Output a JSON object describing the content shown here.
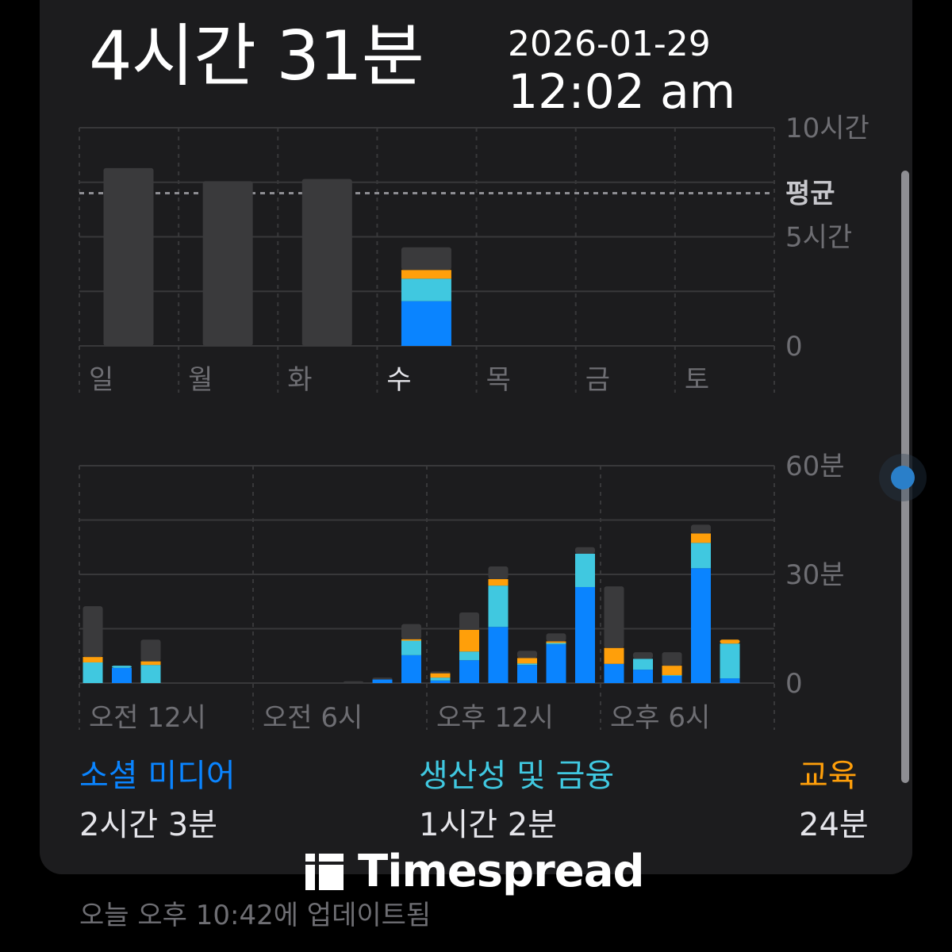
{
  "header": {
    "total_time": "4시간 31분"
  },
  "overlay": {
    "date": "2026-01-29",
    "time": "12:02 am"
  },
  "colors": {
    "social": "#0a84ff",
    "productivity": "#40c8e0",
    "education": "#ff9f0a",
    "other": "#3a3a3c",
    "card": "#1c1c1e"
  },
  "chart_data": [
    {
      "type": "bar",
      "stacked": true,
      "categories": [
        "일",
        "월",
        "화",
        "수",
        "목",
        "금",
        "토"
      ],
      "ylim": [
        0,
        10
      ],
      "y_ticks": [
        {
          "value": 10,
          "label": "10시간"
        },
        {
          "value": 5,
          "label": "5시간"
        },
        {
          "value": 0,
          "label": "0"
        }
      ],
      "average": {
        "value": 7,
        "label": "평균"
      },
      "grid": true,
      "series": [
        {
          "key": "social",
          "values": [
            0,
            0,
            0,
            2.05,
            0,
            0,
            0
          ]
        },
        {
          "key": "productivity",
          "values": [
            0,
            0,
            0,
            1.03,
            0,
            0,
            0
          ]
        },
        {
          "key": "education",
          "values": [
            0,
            0,
            0,
            0.4,
            0,
            0,
            0
          ]
        },
        {
          "key": "other",
          "values": [
            8.15,
            7.55,
            7.65,
            1.04,
            0,
            0,
            0
          ]
        }
      ]
    },
    {
      "type": "bar",
      "stacked": true,
      "x": [
        0,
        1,
        2,
        3,
        4,
        5,
        6,
        7,
        8,
        9,
        10,
        11,
        12,
        13,
        14,
        15,
        16,
        17,
        18,
        19,
        20,
        21,
        22,
        23
      ],
      "x_tick_labels": [
        "오전 12시",
        "오전 6시",
        "오후 12시",
        "오후 6시"
      ],
      "ylim": [
        0,
        60
      ],
      "y_ticks": [
        {
          "value": 60,
          "label": "60분"
        },
        {
          "value": 30,
          "label": "30분"
        },
        {
          "value": 0,
          "label": "0"
        }
      ],
      "grid": true,
      "series": [
        {
          "key": "social",
          "values": [
            0,
            4.2,
            0,
            0,
            0,
            0,
            0,
            0,
            0,
            0,
            1,
            7.7,
            0.7,
            6.3,
            15.5,
            5,
            10.7,
            26.5,
            5.3,
            3.7,
            2,
            31.7,
            1.3,
            0
          ]
        },
        {
          "key": "productivity",
          "values": [
            5.7,
            0.6,
            5,
            0,
            0,
            0,
            0,
            0,
            0,
            0,
            0,
            4,
            0.8,
            2.4,
            11.4,
            0.4,
            0.4,
            9.2,
            0,
            3,
            0.2,
            7,
            9.6,
            0
          ]
        },
        {
          "key": "education",
          "values": [
            1.5,
            0,
            1,
            0,
            0,
            0,
            0,
            0,
            0,
            0,
            0,
            0.4,
            1.2,
            6,
            1.8,
            1.5,
            0.4,
            0,
            4.4,
            0,
            2.6,
            2.6,
            1.1,
            0
          ]
        },
        {
          "key": "other",
          "values": [
            14,
            0,
            6,
            0,
            0,
            0,
            0,
            0,
            0,
            0.5,
            0.5,
            4.2,
            0.5,
            4.8,
            3.5,
            2,
            2.2,
            1.8,
            17,
            1.8,
            3.7,
            2.4,
            0,
            0
          ]
        }
      ]
    }
  ],
  "legend": [
    {
      "name": "소셜 미디어",
      "value": "2시간 3분",
      "color": "#0a84ff"
    },
    {
      "name": "생산성 및 금융",
      "value": "1시간 2분",
      "color": "#40c8e0"
    },
    {
      "name": "교육",
      "value": "24분",
      "color": "#ff9f0a"
    }
  ],
  "footer": {
    "updated": "오늘 오후 10:42에 업데이트됨"
  },
  "watermark": {
    "text": "Timespread"
  }
}
